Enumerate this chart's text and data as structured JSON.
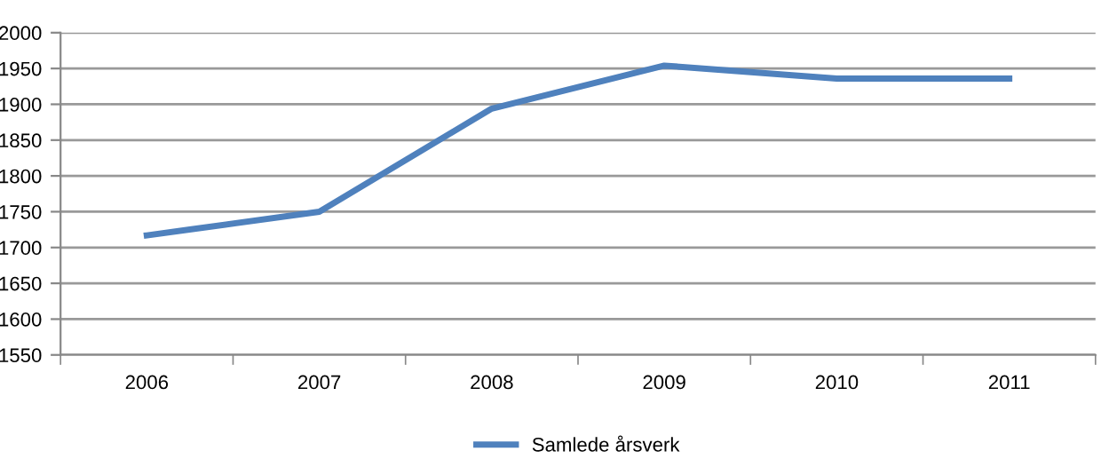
{
  "chart_data": {
    "type": "line",
    "categories": [
      "2006",
      "2007",
      "2008",
      "2009",
      "2010",
      "2011"
    ],
    "series": [
      {
        "name": "Samlede årsverk",
        "color": "#4f81bd",
        "values": [
          1717,
          1750,
          1894,
          1954,
          1936,
          1936
        ]
      }
    ],
    "ylim": [
      1550,
      2000
    ],
    "yticks": [
      1550,
      1600,
      1650,
      1700,
      1750,
      1800,
      1850,
      1900,
      1950,
      2000
    ],
    "grid": "y",
    "legend": "bottom",
    "marker": "none",
    "line_style": "solid"
  }
}
